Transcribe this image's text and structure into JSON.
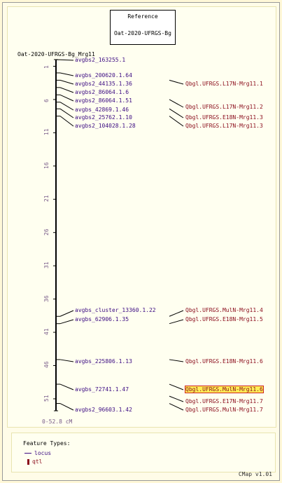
{
  "reference": {
    "line1": "Reference",
    "line2": "Oat-2020-UFRGS-Bg"
  },
  "map": {
    "name": "Oat-2020-UFRGS-Bg_Mrg11",
    "range_label": "0-52.8 cM",
    "ticks": [
      "1",
      "6",
      "11",
      "16",
      "21",
      "26",
      "31",
      "36",
      "41",
      "46",
      "51"
    ],
    "loci": [
      {
        "label": "avgbs2_163255.1",
        "pos": 0.02
      },
      {
        "label": "avgbs_200620.1.64",
        "pos": 2.0
      },
      {
        "label": "avgbs2_44135.1.36",
        "pos": 3.1
      },
      {
        "label": "avgbs2_86064.1.6",
        "pos": 4.2
      },
      {
        "label": "avgbs2_86064.1.51",
        "pos": 5.3
      },
      {
        "label": "avgbs_42869.1.46",
        "pos": 6.4
      },
      {
        "label": "avgbs2_25762.1.10",
        "pos": 7.4
      },
      {
        "label": "avgbs2_104028.1.28",
        "pos": 8.5
      },
      {
        "label": "avgbs_cluster_13360.1.22",
        "pos": 38.6
      },
      {
        "label": "avgbs_62906.1.35",
        "pos": 39.7
      },
      {
        "label": "avgbs_225806.1.13",
        "pos": 45.1
      },
      {
        "label": "avgbs_72741.1.47",
        "pos": 48.8
      },
      {
        "label": "avgbs2_96603.1.42",
        "pos": 51.7
      }
    ],
    "qtls": [
      {
        "label": "Qbgl.UFRGS.L17N-Mrg11.1",
        "pos": 3.1,
        "highlight": false
      },
      {
        "label": "Qbgl.UFRGS.L17N-Mrg11.2",
        "pos": 6.0,
        "highlight": false
      },
      {
        "label": "Qbgl.UFRGS.E18N-Mrg11.3",
        "pos": 7.4,
        "highlight": false
      },
      {
        "label": "Qbgl.UFRGS.L17N-Mrg11.3",
        "pos": 8.5,
        "highlight": false
      },
      {
        "label": "Qbgl.UFRGS.MulN-Mrg11.4",
        "pos": 38.6,
        "highlight": false
      },
      {
        "label": "Qbgl.UFRGS.E18N-Mrg11.5",
        "pos": 39.7,
        "highlight": false
      },
      {
        "label": "Qbgl.UFRGS.E18N-Mrg11.6",
        "pos": 45.1,
        "highlight": false
      },
      {
        "label": "Qbgl.UFRGS.MulN-Mrg11.6",
        "pos": 48.8,
        "highlight": true
      },
      {
        "label": "Qbgl.UFRGS.E17N-Mrg11.7",
        "pos": 50.6,
        "highlight": false
      },
      {
        "label": "Qbgl.UFRGS.MulN-Mrg11.7",
        "pos": 51.7,
        "highlight": false
      }
    ]
  },
  "legend": {
    "title": "Feature Types:",
    "locus": "locus",
    "qtl": "qtl"
  },
  "footer": "CMap v1.01",
  "colors": {
    "locus": "#3b0a82",
    "qtl": "#8a0a1a",
    "highlight": "#ffee55"
  }
}
